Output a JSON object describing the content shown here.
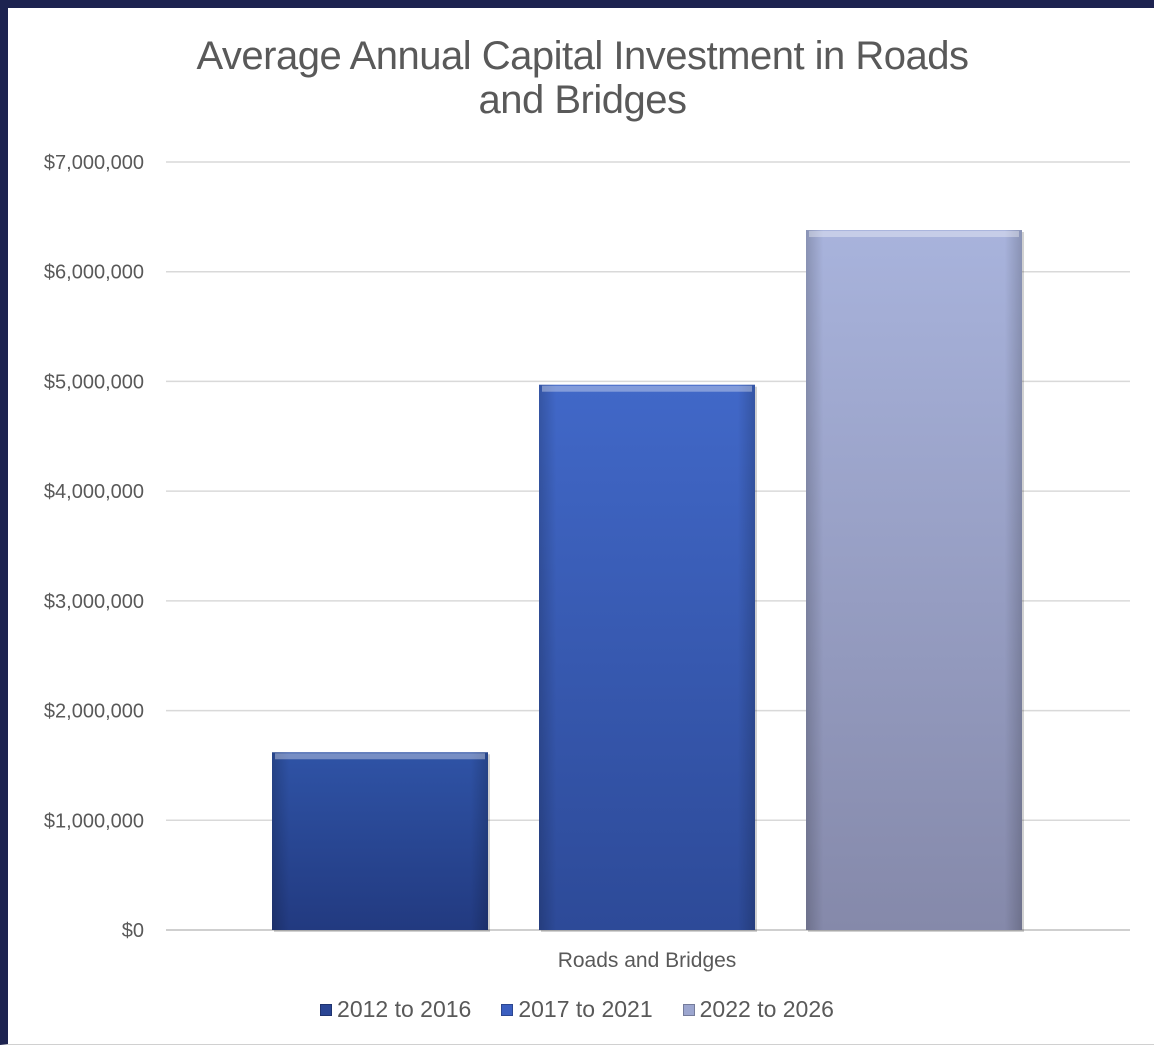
{
  "chart_data": {
    "type": "bar",
    "title": "Average Annual Capital Investment in Roads and Bridges",
    "title_lines": [
      "Average Annual Capital Investment in Roads",
      "and Bridges"
    ],
    "categories": [
      "Roads and Bridges"
    ],
    "series": [
      {
        "name": "2012 to 2016",
        "values": [
          1620000
        ],
        "color": "#2a4594"
      },
      {
        "name": "2017 to 2021",
        "values": [
          4970000
        ],
        "color": "#3b5fc0"
      },
      {
        "name": "2022 to 2026",
        "values": [
          6380000
        ],
        "color": "#9ca6cf"
      }
    ],
    "ylim": [
      0,
      7000000
    ],
    "yticks": [
      0,
      1000000,
      2000000,
      3000000,
      4000000,
      5000000,
      6000000,
      7000000
    ],
    "ytick_labels": [
      "$0",
      "$1,000,000",
      "$2,000,000",
      "$3,000,000",
      "$4,000,000",
      "$5,000,000",
      "$6,000,000",
      "$7,000,000"
    ],
    "grid": true,
    "legend_position": "bottom"
  }
}
